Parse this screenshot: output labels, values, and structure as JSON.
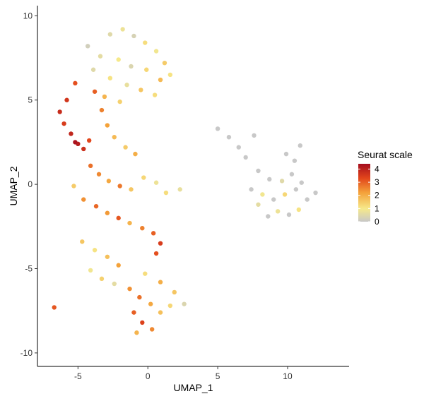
{
  "chart_data": {
    "type": "scatter",
    "xlabel": "UMAP_1",
    "ylabel": "UMAP_2",
    "xlim": [
      -7.9,
      14.4
    ],
    "ylim": [
      -10.8,
      10.6
    ],
    "x_ticks": [
      -5,
      0,
      5,
      10
    ],
    "y_ticks": [
      -10,
      -5,
      0,
      5,
      10
    ],
    "x_tick_labels": [
      "-5",
      "0",
      "5",
      "10"
    ],
    "y_tick_labels": [
      "-10",
      "-5",
      "0",
      "5",
      "10"
    ],
    "grid": false,
    "legend": {
      "title": "Seurat scale",
      "placement": "right",
      "min": 0,
      "max": 4.4,
      "breaks": [
        0,
        1,
        2,
        3,
        4
      ],
      "break_labels": [
        "0",
        "1",
        "2",
        "3",
        "4"
      ]
    },
    "colors": {
      "zero": "#c8c8c8",
      "low": "#f6e98a",
      "mid": "#f4a23a",
      "high": "#e2461b",
      "max": "#a40d1e"
    },
    "series": [
      {
        "points": [
          [
            -2.7,
            8.9,
            0.5
          ],
          [
            -1.8,
            9.2,
            0.8
          ],
          [
            -1.0,
            8.8,
            0.3
          ],
          [
            -0.2,
            8.4,
            1.2
          ],
          [
            0.6,
            7.9,
            0.9
          ],
          [
            1.2,
            7.2,
            1.5
          ],
          [
            1.6,
            6.5,
            1.1
          ],
          [
            -4.3,
            8.2,
            0.2
          ],
          [
            -3.4,
            7.6,
            0.6
          ],
          [
            -2.1,
            7.4,
            1.0
          ],
          [
            -1.2,
            7.0,
            0.4
          ],
          [
            -0.1,
            6.8,
            1.3
          ],
          [
            0.9,
            6.2,
            1.8
          ],
          [
            -3.9,
            6.8,
            0.5
          ],
          [
            -2.7,
            6.3,
            1.1
          ],
          [
            -1.5,
            5.9,
            0.7
          ],
          [
            -0.5,
            5.6,
            1.6
          ],
          [
            0.5,
            5.3,
            1.2
          ],
          [
            -3.1,
            5.2,
            1.9
          ],
          [
            -2.0,
            4.9,
            1.4
          ],
          [
            -5.2,
            6.0,
            3.2
          ],
          [
            -5.8,
            5.0,
            3.6
          ],
          [
            -6.3,
            4.3,
            3.8
          ],
          [
            -6.0,
            3.6,
            3.5
          ],
          [
            -5.5,
            3.0,
            3.9
          ],
          [
            -5.0,
            2.4,
            4.1
          ],
          [
            -4.6,
            2.1,
            3.7
          ],
          [
            -5.2,
            2.5,
            4.3
          ],
          [
            -4.2,
            2.6,
            3.3
          ],
          [
            -3.8,
            5.5,
            3.0
          ],
          [
            -3.3,
            4.4,
            2.6
          ],
          [
            -2.9,
            3.5,
            2.2
          ],
          [
            -2.4,
            2.8,
            1.8
          ],
          [
            -1.6,
            2.2,
            1.5
          ],
          [
            -0.9,
            1.8,
            2.0
          ],
          [
            -4.1,
            1.1,
            2.8
          ],
          [
            -3.5,
            0.6,
            2.5
          ],
          [
            -2.8,
            0.2,
            2.1
          ],
          [
            -2.0,
            -0.1,
            2.7
          ],
          [
            -1.2,
            -0.3,
            1.6
          ],
          [
            -0.3,
            0.4,
            1.3
          ],
          [
            0.6,
            0.1,
            0.8
          ],
          [
            1.3,
            -0.5,
            1.2
          ],
          [
            -5.3,
            -0.1,
            1.5
          ],
          [
            -4.6,
            -0.9,
            2.4
          ],
          [
            -3.7,
            -1.3,
            2.9
          ],
          [
            -2.9,
            -1.7,
            2.3
          ],
          [
            -2.1,
            -2.0,
            3.1
          ],
          [
            -1.3,
            -2.3,
            1.9
          ],
          [
            -0.4,
            -2.6,
            2.6
          ],
          [
            0.4,
            -2.9,
            3.0
          ],
          [
            0.9,
            -3.5,
            3.5
          ],
          [
            0.6,
            -4.1,
            3.2
          ],
          [
            -4.7,
            -3.4,
            1.6
          ],
          [
            -3.8,
            -3.9,
            1.1
          ],
          [
            -2.9,
            -4.3,
            1.7
          ],
          [
            -2.1,
            -4.8,
            2.2
          ],
          [
            -4.1,
            -5.1,
            0.9
          ],
          [
            -3.3,
            -5.6,
            1.4
          ],
          [
            -2.4,
            -5.9,
            0.6
          ],
          [
            -1.3,
            -6.2,
            2.4
          ],
          [
            -0.6,
            -6.7,
            2.8
          ],
          [
            0.2,
            -7.1,
            2.1
          ],
          [
            0.9,
            -7.6,
            1.7
          ],
          [
            1.6,
            -7.2,
            1.3
          ],
          [
            -1.0,
            -7.6,
            3.0
          ],
          [
            -0.4,
            -8.2,
            3.4
          ],
          [
            0.3,
            -8.6,
            2.5
          ],
          [
            -0.8,
            -8.8,
            1.9
          ],
          [
            2.6,
            -7.1,
            0.4
          ],
          [
            1.9,
            -6.4,
            1.6
          ],
          [
            0.9,
            -5.8,
            2.0
          ],
          [
            -0.2,
            -5.3,
            1.2
          ],
          [
            -6.7,
            -7.3,
            3.1
          ],
          [
            2.3,
            -0.3,
            0.7
          ],
          [
            5.0,
            3.3,
            0.0
          ],
          [
            5.8,
            2.8,
            0.0
          ],
          [
            6.5,
            2.2,
            0.0
          ],
          [
            7.0,
            1.6,
            0.0
          ],
          [
            7.6,
            2.9,
            0.0
          ],
          [
            7.9,
            0.8,
            0.0
          ],
          [
            7.4,
            -0.3,
            0.0
          ],
          [
            7.9,
            -1.2,
            0.6
          ],
          [
            8.6,
            -1.9,
            0.0
          ],
          [
            9.3,
            -1.6,
            0.8
          ],
          [
            10.1,
            -1.8,
            0.0
          ],
          [
            10.8,
            -1.5,
            1.1
          ],
          [
            11.4,
            -0.9,
            0.0
          ],
          [
            12.0,
            -0.5,
            0.0
          ],
          [
            11.0,
            0.1,
            0.0
          ],
          [
            10.3,
            0.6,
            0.0
          ],
          [
            9.6,
            0.2,
            0.5
          ],
          [
            10.5,
            1.4,
            0.0
          ],
          [
            10.9,
            2.3,
            0.0
          ],
          [
            9.9,
            1.8,
            0.0
          ],
          [
            8.7,
            0.3,
            0.0
          ],
          [
            8.2,
            -0.6,
            0.9
          ],
          [
            9.0,
            -0.9,
            0.0
          ],
          [
            9.8,
            -0.6,
            1.3
          ],
          [
            10.6,
            -0.3,
            0.0
          ]
        ]
      }
    ]
  }
}
